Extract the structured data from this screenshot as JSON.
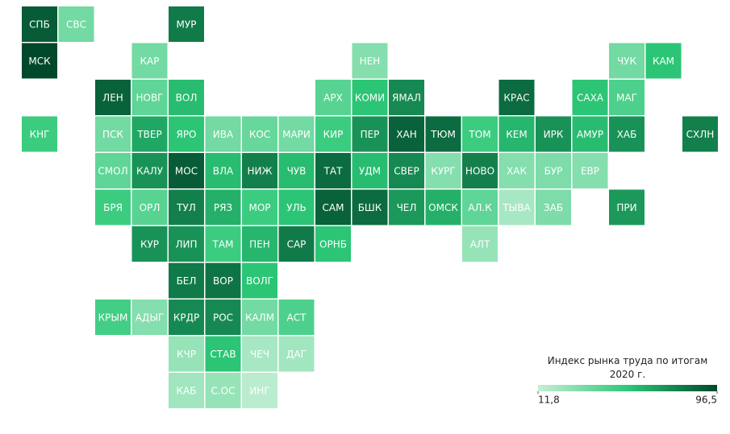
{
  "chart_data": {
    "type": "tilemap",
    "legend_title": "Индекс рынка труда по итогам 2020 г.",
    "clim": [
      11.8,
      96.5
    ],
    "cticks": [
      {
        "value": 11.8,
        "label": "11,8"
      },
      {
        "value": 96.5,
        "label": "96,5"
      }
    ],
    "colors": [
      "#c6efd6",
      "#2cc877",
      "#00482b"
    ],
    "categories": [
      "СПБ",
      "СВС",
      "МУР",
      "МСК",
      "КАР",
      "НЕН",
      "ЧУК",
      "КАМ",
      "ЛЕН",
      "НОВГ",
      "ВОЛ",
      "АРХ",
      "КОМИ",
      "ЯМАЛ",
      "КРАС",
      "САХА",
      "МАГ",
      "КНГ",
      "ПСК",
      "ТВЕР",
      "ЯРО",
      "ИВА",
      "КОС",
      "МАРИ",
      "КИР",
      "ПЕР",
      "ХАН",
      "ТЮМ",
      "ТОМ",
      "КЕМ",
      "ИРК",
      "АМУР",
      "ХАБ",
      "СХЛН",
      "СМОЛ",
      "КАЛУ",
      "МОС",
      "ВЛА",
      "НИЖ",
      "ЧУВ",
      "ТАТ",
      "УДМ",
      "СВЕР",
      "КУРГ",
      "НОВО",
      "ХАК",
      "БУР",
      "ЕВР",
      "БРЯ",
      "ОРЛ",
      "ТУЛ",
      "РЯЗ",
      "МОР",
      "УЛЬ",
      "САМ",
      "БШК",
      "ЧЕЛ",
      "ОМСК",
      "АЛ.К",
      "ТЫВА",
      "ЗАБ",
      "ПРИ",
      "КУР",
      "ЛИП",
      "ТАМ",
      "ПЕН",
      "САР",
      "ОРНБ",
      "АЛТ",
      "БЕЛ",
      "ВОР",
      "ВОЛГ",
      "КРЫМ",
      "АДЫГ",
      "КРДР",
      "РОС",
      "КАЛМ",
      "АСТ",
      "КЧР",
      "СТАВ",
      "ЧЕЧ",
      "ДАГ",
      "КАБ",
      "С.ОС",
      "ИНГ"
    ],
    "values": [
      90,
      35,
      80,
      96.5,
      35,
      30,
      35,
      55,
      88,
      40,
      58,
      42,
      55,
      75,
      85,
      55,
      45,
      50,
      35,
      65,
      55,
      35,
      38,
      35,
      50,
      72,
      88,
      85,
      50,
      60,
      72,
      58,
      72,
      78,
      40,
      72,
      90,
      58,
      78,
      58,
      85,
      58,
      75,
      30,
      78,
      30,
      32,
      30,
      50,
      42,
      78,
      62,
      50,
      55,
      88,
      85,
      70,
      62,
      40,
      20,
      32,
      70,
      72,
      72,
      50,
      60,
      80,
      55,
      25,
      80,
      82,
      55,
      48,
      30,
      75,
      75,
      35,
      45,
      25,
      55,
      20,
      22,
      22,
      25,
      15
    ]
  }
}
